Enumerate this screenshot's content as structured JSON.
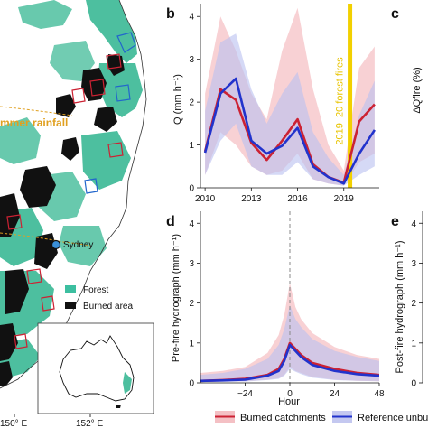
{
  "map": {
    "label_summer_rainfall": "mmer rainfall",
    "label_sydney": "Sydney",
    "legend": [
      {
        "label": "Forest",
        "color": "#3cbfa0"
      },
      {
        "label": "Burned area",
        "color": "#111111"
      }
    ],
    "lon_labels": [
      "150° E",
      "152° E"
    ],
    "colors": {
      "ocean": "#ffffff",
      "land": "#ffffff",
      "forest": "#4dbf9f",
      "burn": "#111111",
      "catch_red": "#cc2233",
      "catch_blue": "#2266cc",
      "boundary": "#e0a020"
    }
  },
  "panels": {
    "b": "b",
    "c": "c",
    "d": "d",
    "e": "e"
  },
  "chart_data": [
    {
      "id": "b",
      "type": "line",
      "title": "",
      "xlabel": "",
      "ylabel": "Q (mm h⁻¹)",
      "x": [
        2010,
        2011,
        2012,
        2013,
        2014,
        2015,
        2016,
        2017,
        2018,
        2019,
        2020,
        2021
      ],
      "xticks": [
        2010,
        2013,
        2016,
        2019
      ],
      "yticks": [
        0,
        1,
        2,
        3,
        4
      ],
      "ylim": [
        0,
        4.3
      ],
      "xlim": [
        2009.7,
        2021.3
      ],
      "annotation": {
        "x": 2019.4,
        "label": "2019–20 forest fires",
        "color": "#f2d000"
      },
      "series": [
        {
          "name": "Burned catchments",
          "color": "#cc2233",
          "values": [
            0.85,
            2.3,
            2.05,
            1.05,
            0.65,
            1.1,
            1.6,
            0.55,
            0.25,
            0.12,
            1.55,
            1.95
          ],
          "lower": [
            0.3,
            1.3,
            1.0,
            0.5,
            0.3,
            0.4,
            0.8,
            0.2,
            0.1,
            0.05,
            0.6,
            0.8
          ],
          "upper": [
            2.2,
            4.0,
            3.2,
            2.2,
            1.6,
            3.2,
            4.2,
            2.3,
            1.0,
            0.4,
            2.8,
            3.3
          ]
        },
        {
          "name": "Reference unburned",
          "color": "#2233cc",
          "values": [
            0.82,
            2.2,
            2.55,
            1.1,
            0.8,
            0.98,
            1.4,
            0.5,
            0.25,
            0.1,
            0.8,
            1.35
          ],
          "lower": [
            0.3,
            1.1,
            1.5,
            0.5,
            0.3,
            0.3,
            0.6,
            0.2,
            0.1,
            0.05,
            0.3,
            0.5
          ],
          "upper": [
            1.8,
            3.4,
            3.6,
            2.3,
            1.5,
            2.2,
            2.7,
            1.3,
            0.7,
            0.3,
            1.7,
            2.5
          ]
        }
      ]
    },
    {
      "id": "c",
      "type": "line",
      "ylabel": "ΔQfire (%)",
      "yticks": [],
      "series": []
    },
    {
      "id": "d",
      "type": "line",
      "title": "",
      "xlabel": "Hour",
      "ylabel": "Pre-fire hydrograph (mm h⁻¹)",
      "xticks": [
        -24,
        0,
        24,
        48
      ],
      "yticks": [
        0,
        1,
        2,
        3,
        4
      ],
      "ylim": [
        0,
        4.3
      ],
      "xlim": [
        -48,
        48
      ],
      "vline": 0,
      "x": [
        -48,
        -36,
        -24,
        -12,
        -6,
        -3,
        0,
        3,
        6,
        12,
        24,
        36,
        48
      ],
      "series": [
        {
          "name": "Burned catchments",
          "color": "#cc2233",
          "values": [
            0.05,
            0.07,
            0.1,
            0.2,
            0.35,
            0.6,
            1.0,
            0.85,
            0.7,
            0.5,
            0.35,
            0.25,
            0.2
          ],
          "lower": [
            0.02,
            0.03,
            0.04,
            0.08,
            0.12,
            0.2,
            0.4,
            0.3,
            0.25,
            0.15,
            0.08,
            0.05,
            0.04
          ],
          "upper": [
            0.25,
            0.3,
            0.4,
            0.75,
            1.2,
            1.7,
            2.5,
            1.9,
            1.6,
            1.25,
            0.9,
            0.7,
            0.6
          ]
        },
        {
          "name": "Reference unburned",
          "color": "#2233cc",
          "values": [
            0.05,
            0.06,
            0.08,
            0.18,
            0.3,
            0.55,
            0.95,
            0.8,
            0.65,
            0.45,
            0.3,
            0.22,
            0.18
          ],
          "lower": [
            0.02,
            0.03,
            0.03,
            0.07,
            0.1,
            0.18,
            0.35,
            0.28,
            0.22,
            0.13,
            0.07,
            0.05,
            0.04
          ],
          "upper": [
            0.2,
            0.25,
            0.35,
            0.6,
            0.95,
            1.35,
            1.95,
            1.6,
            1.4,
            1.1,
            0.8,
            0.65,
            0.55
          ]
        }
      ]
    },
    {
      "id": "e",
      "type": "line",
      "ylabel": "Post-fire hydrograph (mm h⁻¹)",
      "yticks": [
        0,
        1,
        2,
        3,
        4
      ],
      "series": []
    }
  ],
  "legend": [
    {
      "label": "Burned catchments",
      "color": "#cc2233",
      "fill": "#f4c0c4"
    },
    {
      "label": "Reference unbu",
      "color": "#2233cc",
      "fill": "#c4c8f0"
    }
  ]
}
